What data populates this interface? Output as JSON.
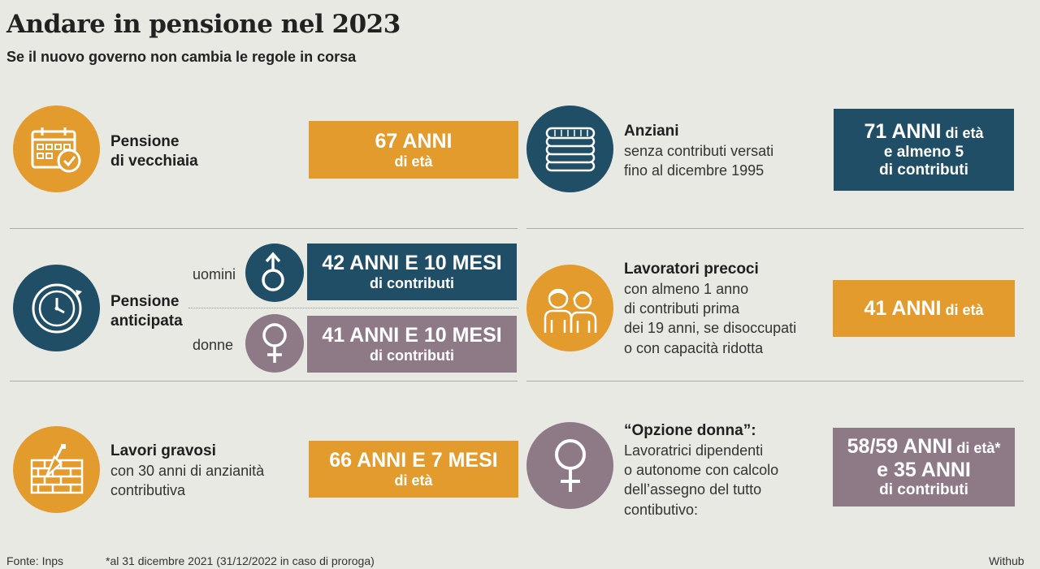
{
  "header": {
    "title": "Andare in pensione nel 2023",
    "subtitle": "Se il nuovo governo non cambia le regole in corsa"
  },
  "left": {
    "vecchiaia": {
      "label_line1": "Pensione",
      "label_line2": "di vecchiaia",
      "icon": "calendar-check-icon",
      "value_big": "67 ANNI",
      "value_small": "di età"
    },
    "anticipata": {
      "label_line1": "Pensione",
      "label_line2": "anticipata",
      "icon": "clock-icon",
      "uomini_label": "uomini",
      "uomini_value_big": "42 ANNI E 10 MESI",
      "uomini_value_small": "di contributi",
      "donne_label": "donne",
      "donne_value_big": "41 ANNI E 10 MESI",
      "donne_value_small": "di contributi"
    },
    "gravosi": {
      "label_bold": "Lavori gravosi",
      "text_line1": "con 30 anni di anzianità",
      "text_line2": "contributiva",
      "icon": "brick-wall-icon",
      "value_big": "66 ANNI E 7 MESI",
      "value_small": "di età"
    }
  },
  "right": {
    "anziani": {
      "label_bold": "Anziani",
      "text_line1": "senza contributi versati",
      "text_line2": "fino al dicembre 1995",
      "icon": "coins-stack-icon",
      "value_big": "71 ANNI",
      "value_big_suffix": " di età",
      "value_line2": "e almeno 5",
      "value_line3": "di contributi"
    },
    "precoci": {
      "label_bold": "Lavoratori precoci",
      "text_line1": "con almeno 1 anno",
      "text_line2": "di contributi prima",
      "text_line3": "dei 19 anni, se disoccupati",
      "text_line4": "o con capacità ridotta",
      "icon": "young-workers-icon",
      "value_big": "41 ANNI",
      "value_big_suffix": " di età"
    },
    "opzione_donna": {
      "label_bold": "“Opzione donna”:",
      "text_line1": "Lavoratrici dipendenti",
      "text_line2": "o autonome con calcolo",
      "text_line3": "dell’assegno del tutto",
      "text_line4": "contibutivo:",
      "icon": "female-symbol-icon",
      "value_big": "58/59 ANNI",
      "value_big_suffix": " di età*",
      "value_line2": "e 35 ANNI",
      "value_line3": "di contributi"
    }
  },
  "footer": {
    "source": "Fonte: Inps",
    "note": "*al 31 dicembre 2021 (31/12/2022 in caso di proroga)",
    "credit": "Withub"
  },
  "colors": {
    "orange": "#e49b2e",
    "navy": "#1f4e66",
    "mauve": "#8e7a87",
    "background": "#e8e9e3"
  }
}
